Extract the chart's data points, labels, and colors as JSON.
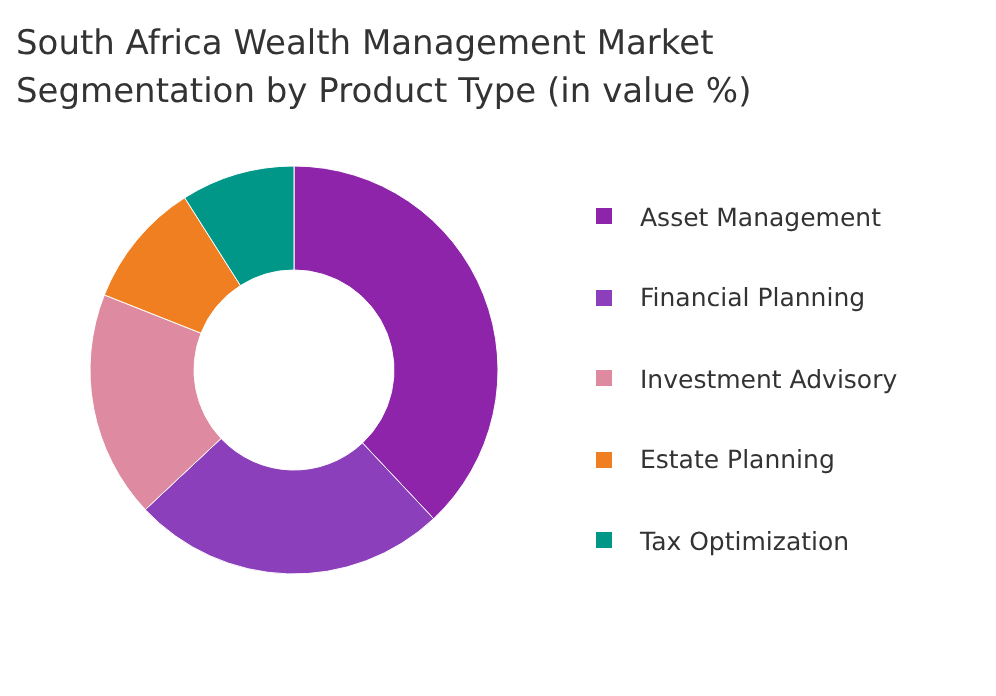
{
  "chart_data": {
    "type": "donut",
    "title": "South Africa Wealth Management Market Segmentation by Product Type (in value %)",
    "categories": [
      "Asset Management",
      "Financial Planning",
      "Investment Advisory",
      "Estate Planning",
      "Tax Optimization"
    ],
    "values": [
      38,
      25,
      18,
      10,
      9
    ],
    "colors": [
      "#8e24aa",
      "#8b3fbb",
      "#de8aa0",
      "#f07f21",
      "#009688"
    ],
    "legend": "right"
  }
}
